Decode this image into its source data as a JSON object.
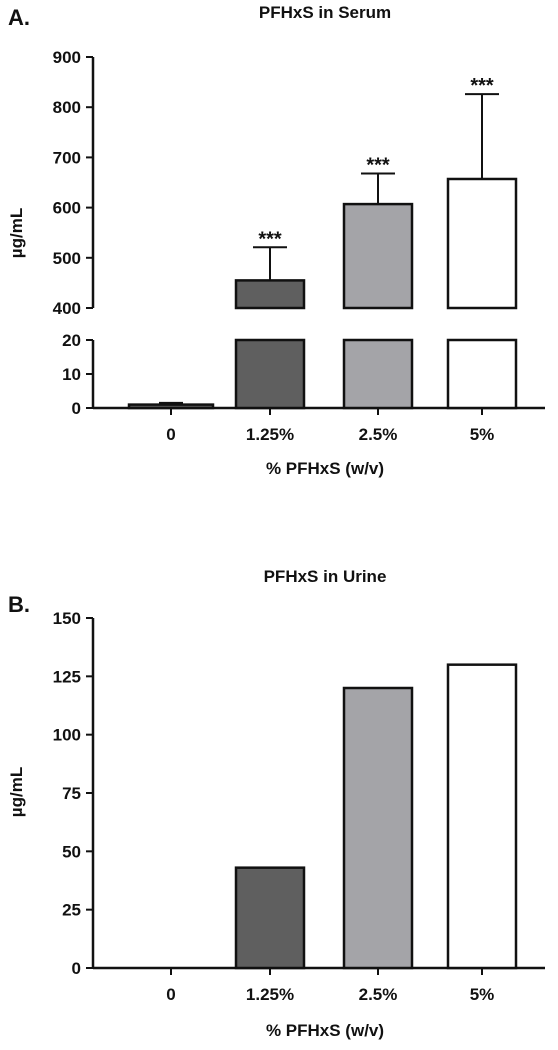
{
  "chart_data": [
    {
      "type": "bar",
      "panel_label": "A.",
      "title": "PFHxS in Serum",
      "xlabel": "% PFHxS (w/v)",
      "ylabel": "µg/mL",
      "categories": [
        "0",
        "1.25%",
        "2.5%",
        "5%"
      ],
      "values": [
        1,
        455,
        607,
        657
      ],
      "error_upper": [
        1.5,
        521,
        668,
        826
      ],
      "annotations": [
        "",
        "***",
        "***",
        "***"
      ],
      "bar_colors": [
        "#5f5f5f",
        "#5f5f5f",
        "#a4a4a8",
        "#ffffff"
      ],
      "axis_break": true,
      "lower_ylim": [
        0,
        20
      ],
      "lower_ticks": [
        "0",
        "10",
        "20"
      ],
      "upper_ylim": [
        400,
        900
      ],
      "upper_ticks": [
        "400",
        "500",
        "600",
        "700",
        "800",
        "900"
      ],
      "grid": false
    },
    {
      "type": "bar",
      "panel_label": "B.",
      "title": "PFHxS in Urine",
      "xlabel": "% PFHxS (w/v)",
      "ylabel": "µg/mL",
      "categories": [
        "0",
        "1.25%",
        "2.5%",
        "5%"
      ],
      "values": [
        0,
        43,
        120,
        130
      ],
      "bar_colors": [
        "#5f5f5f",
        "#5f5f5f",
        "#a4a4a8",
        "#ffffff"
      ],
      "ylim": [
        0,
        150
      ],
      "yticks": [
        "0",
        "25",
        "50",
        "75",
        "100",
        "125",
        "150"
      ],
      "grid": false
    }
  ]
}
